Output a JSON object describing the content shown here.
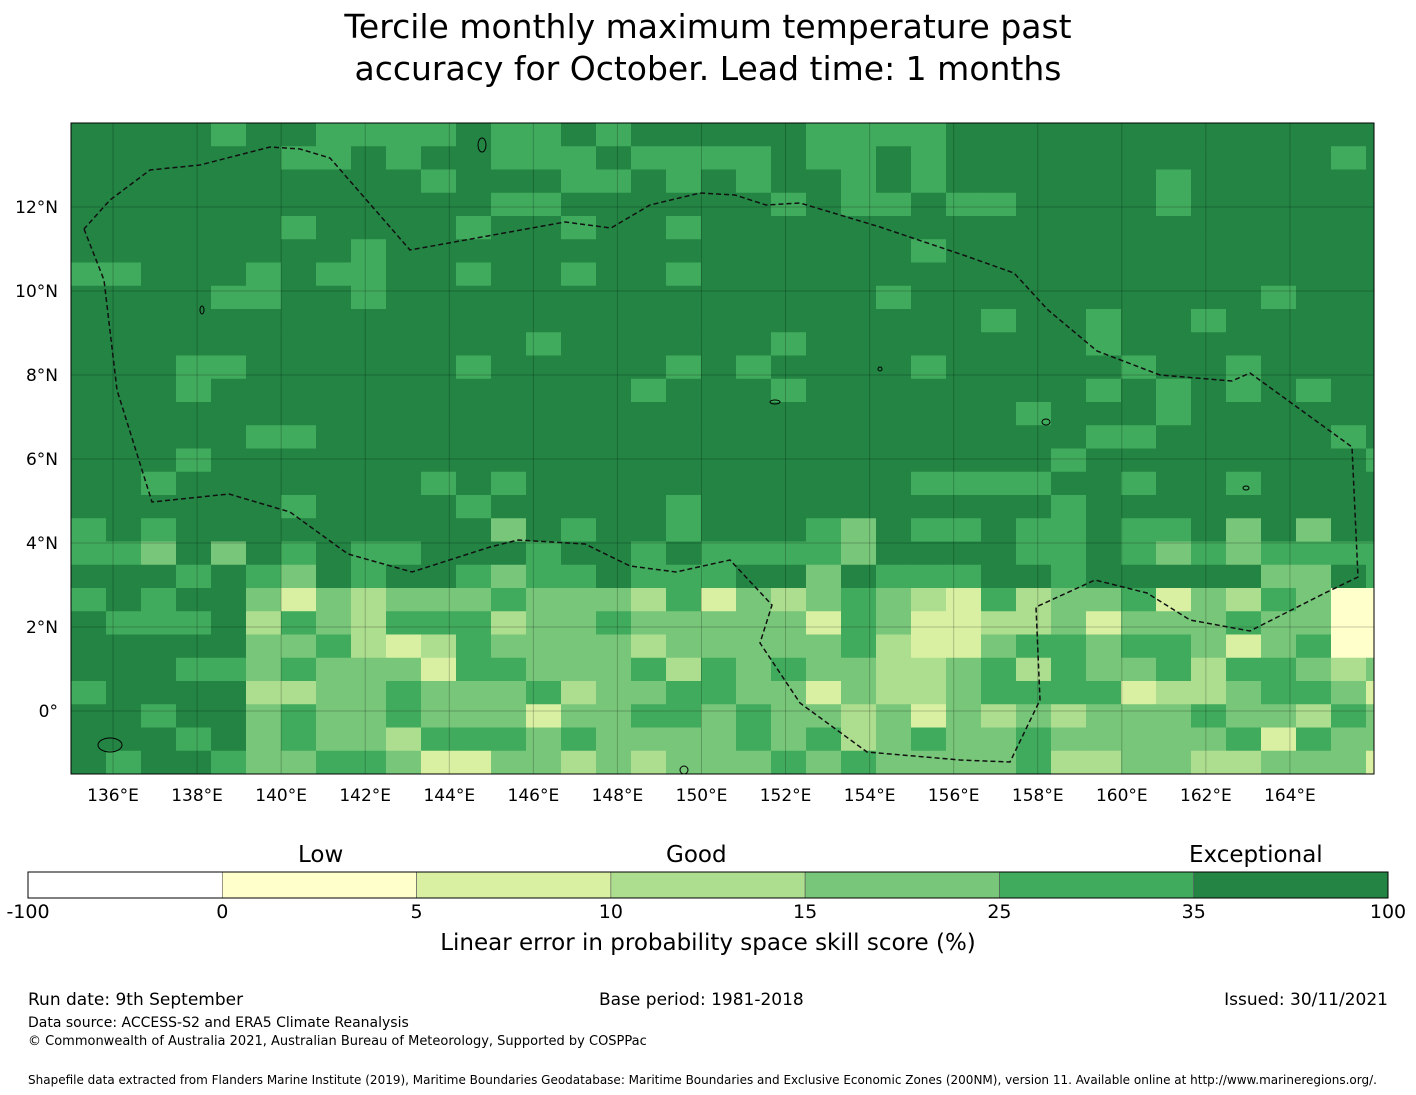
{
  "title": {
    "line1": "Tercile monthly maximum temperature past",
    "line2": "accuracy for October. Lead time: 1 months"
  },
  "map": {
    "x_ticks": [
      "136°E",
      "138°E",
      "140°E",
      "142°E",
      "144°E",
      "146°E",
      "148°E",
      "150°E",
      "152°E",
      "154°E",
      "156°E",
      "158°E",
      "160°E",
      "162°E",
      "164°E"
    ],
    "y_ticks": [
      "12°N",
      "10°N",
      "8°N",
      "6°N",
      "4°N",
      "2°N",
      "0°"
    ],
    "lon_range": [
      135,
      166
    ],
    "lat_range": [
      -1.5,
      14
    ],
    "colors": {
      "c0_5": "#ffffcc",
      "c5_10": "#d9f0a3",
      "c10_15": "#addd8e",
      "c15_25": "#78c679",
      "c25_35": "#41ab5d",
      "c35_100": "#238443"
    }
  },
  "colorbar": {
    "bands": {
      "low": "Low",
      "good": "Good",
      "exceptional": "Exceptional"
    },
    "boundaries": [
      "-100",
      "0",
      "5",
      "10",
      "15",
      "25",
      "35",
      "100"
    ],
    "colors": [
      "#ffffff",
      "#ffffcc",
      "#d9f0a3",
      "#addd8e",
      "#78c679",
      "#41ab5d",
      "#238443"
    ],
    "title": "Linear error in probability space skill score (%)"
  },
  "footer": {
    "run_date": "Run date: 9th September",
    "base_period": "Base period: 1981-2018",
    "issued": "Issued: 30/11/2021",
    "data_source": "Data source: ACCESS-S2 and ERA5 Climate Reanalysis",
    "copyright": "© Commonwealth of Australia 2021, Australian Bureau of Meteorology, Supported by COSPPac",
    "shapefile": "Shapefile data extracted from Flanders Marine Institute (2019), Maritime Boundaries Geodatabase: Maritime Boundaries and Exclusive Economic Zones (200NM), version 11. Available online at http://www.marineregions.org/."
  }
}
